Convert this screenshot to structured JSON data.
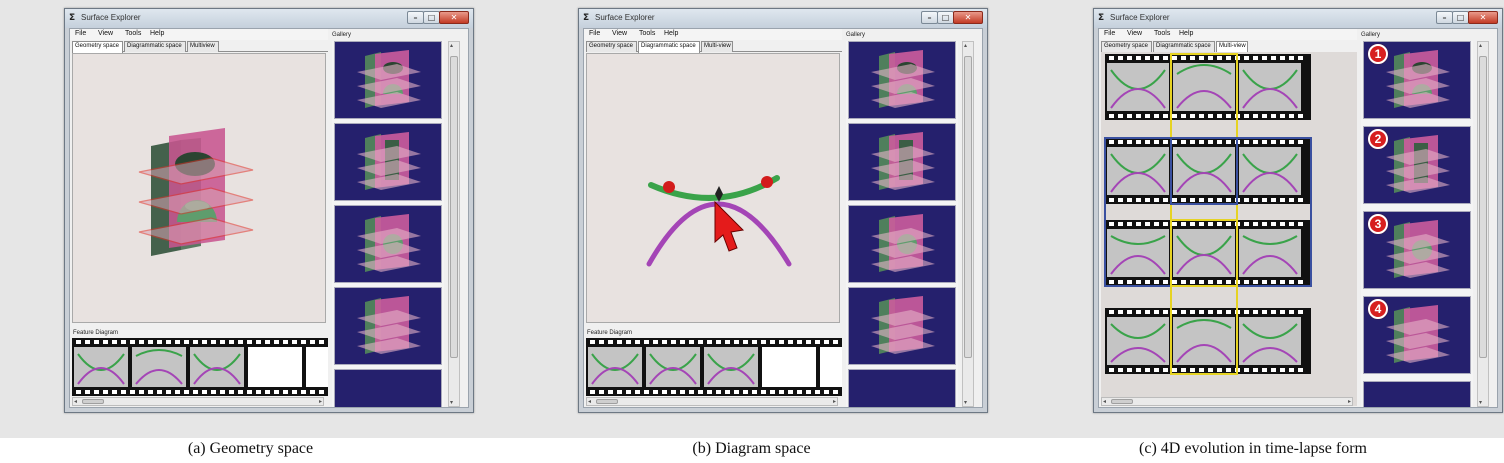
{
  "panels": [
    {
      "title": "Surface Explorer",
      "menu": [
        "File",
        "View",
        "Tools",
        "Help"
      ],
      "tabs": [
        "Geometry space",
        "Diagrammatic space",
        "Multiview"
      ],
      "feature_label": "Feature Diagram",
      "gallery_label": "Gallery",
      "caption": "(a) Geometry space"
    },
    {
      "title": "Surface Explorer",
      "menu": [
        "File",
        "View",
        "Tools",
        "Help"
      ],
      "tabs": [
        "Geometry space",
        "Diagrammatic space",
        "Multi-view"
      ],
      "feature_label": "Feature Diagram",
      "gallery_label": "Gallery",
      "caption": "(b) Diagram space"
    },
    {
      "title": "Surface Explorer",
      "menu": [
        "File",
        "View",
        "Tools",
        "Help"
      ],
      "tabs": [
        "Geometry space",
        "Diagrammatic space",
        "Multi-view"
      ],
      "gallery_label": "Gallery",
      "badges": [
        "1",
        "2",
        "3",
        "4"
      ],
      "caption": "(c) 4D evolution in time-lapse form"
    }
  ],
  "colors": {
    "window_frame": "#c9cfd6",
    "titlebar": "#dfe7ef",
    "close_button": "#c33b25",
    "viewport_bg": "#e8e2e0",
    "gallery_bg": "#25206d",
    "surface_pink": "#cc5c9c",
    "solid_green": "#4f7f5c",
    "curve_green": "#3aa34a",
    "curve_purple": "#a445b6",
    "grid_blue": "#3a50a0",
    "grid_yellow": "#e6d323",
    "badge_red": "#d71f1f"
  }
}
